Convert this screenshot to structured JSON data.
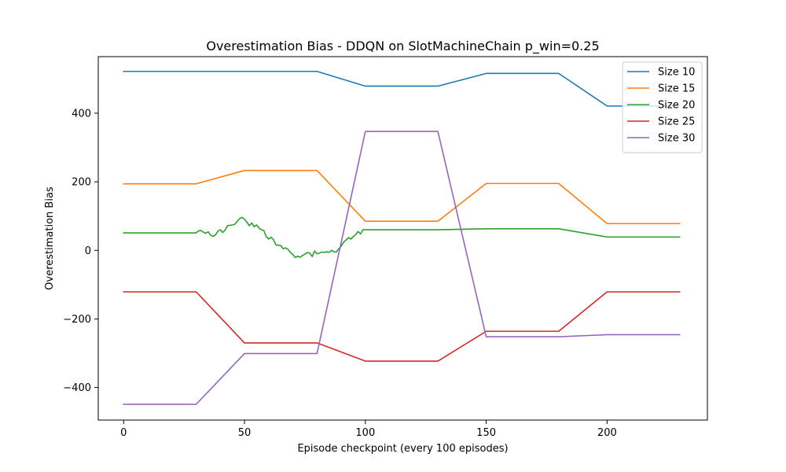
{
  "chart_data": {
    "type": "line",
    "title": "Overestimation Bias - DDQN on SlotMachineChain p_win=0.25",
    "xlabel": "Episode checkpoint (every 100 episodes)",
    "ylabel": "Overestimation Bias",
    "xlim": [
      -10.5,
      241.5
    ],
    "ylim": [
      -495,
      565
    ],
    "xticks": [
      0,
      50,
      100,
      150,
      200
    ],
    "yticks": [
      -400,
      -200,
      0,
      200,
      400
    ],
    "legend_position": "top-right",
    "grid": false,
    "series": [
      {
        "name": "Size 10",
        "color": "#1f77b4",
        "x": [
          0,
          30,
          50,
          80,
          100,
          130,
          150,
          180,
          200,
          230
        ],
        "y": [
          522,
          522,
          522,
          522,
          479,
          479,
          516,
          516,
          421,
          421
        ]
      },
      {
        "name": "Size 15",
        "color": "#ff7f0e",
        "x": [
          0,
          30,
          50,
          80,
          100,
          130,
          150,
          180,
          200,
          230
        ],
        "y": [
          194,
          194,
          233,
          233,
          85,
          85,
          195,
          195,
          78,
          78
        ]
      },
      {
        "name": "Size 20",
        "color": "#2ca02c",
        "x": [
          0,
          30,
          31,
          32,
          33,
          34,
          35,
          36,
          37,
          38,
          39,
          40,
          41,
          42,
          43,
          44,
          45,
          46,
          47,
          48,
          49,
          50,
          51,
          52,
          53,
          54,
          55,
          56,
          57,
          58,
          59,
          60,
          61,
          62,
          63,
          64,
          65,
          66,
          67,
          68,
          69,
          70,
          71,
          72,
          73,
          74,
          75,
          76,
          77,
          78,
          79,
          80,
          81,
          82,
          83,
          84,
          85,
          86,
          87,
          88,
          89,
          90,
          91,
          92,
          93,
          94,
          95,
          96,
          97,
          98,
          99,
          100,
          130,
          150,
          180,
          200,
          230
        ],
        "y": [
          51,
          51,
          57,
          58,
          53,
          50,
          54,
          44,
          41,
          45,
          56,
          60,
          52,
          59,
          72,
          73,
          74,
          76,
          85,
          93,
          96,
          91,
          82,
          72,
          80,
          69,
          74,
          65,
          60,
          58,
          40,
          33,
          38,
          31,
          16,
          15,
          14,
          5,
          7,
          3,
          -6,
          -12,
          -21,
          -17,
          -20,
          -15,
          -11,
          -6,
          -8,
          -18,
          -2,
          -10,
          -8,
          -5,
          -6,
          -4,
          -6,
          0,
          -4,
          -5,
          5,
          12,
          24,
          30,
          37,
          33,
          40,
          46,
          55,
          48,
          60,
          60,
          60,
          63,
          63,
          39,
          39
        ]
      },
      {
        "name": "Size 25",
        "color": "#d62728",
        "x": [
          0,
          30,
          50,
          80,
          100,
          130,
          150,
          180,
          200,
          230
        ],
        "y": [
          -121,
          -121,
          -270,
          -270,
          -323,
          -323,
          -236,
          -236,
          -121,
          -121
        ]
      },
      {
        "name": "Size 30",
        "color": "#9467bd",
        "x": [
          0,
          30,
          50,
          80,
          100,
          130,
          150,
          180,
          200,
          230
        ],
        "y": [
          -449,
          -449,
          -301,
          -301,
          347,
          347,
          -252,
          -252,
          -246,
          -246
        ]
      }
    ]
  }
}
